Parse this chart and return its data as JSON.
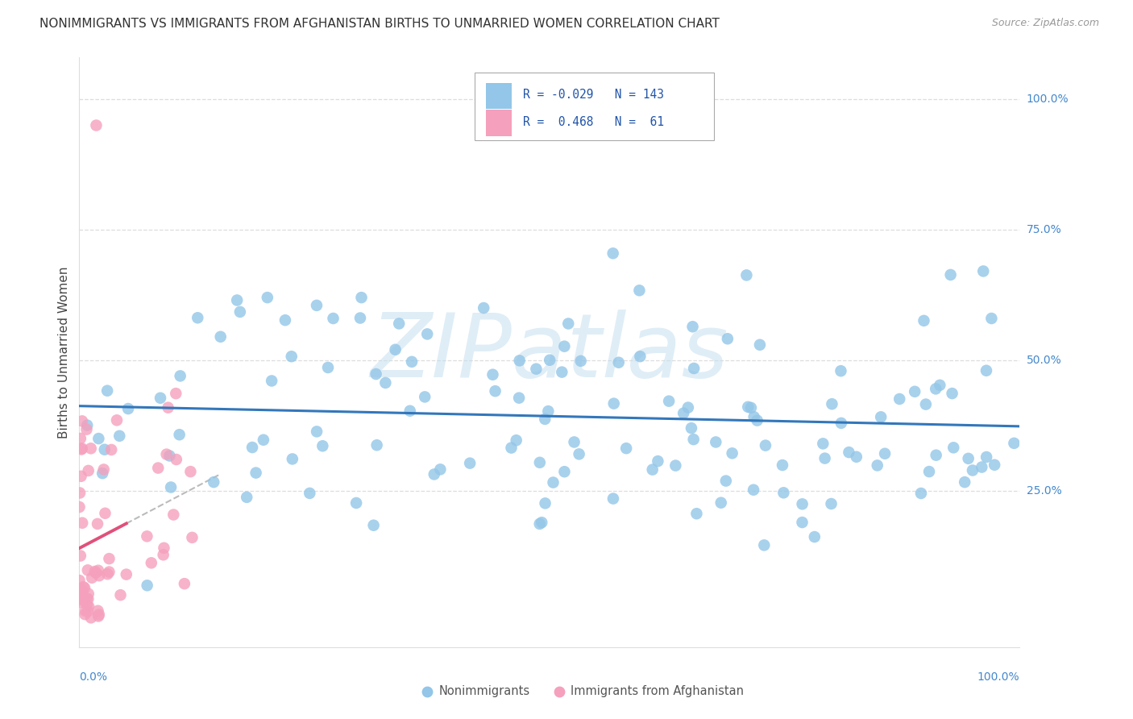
{
  "title": "NONIMMIGRANTS VS IMMIGRANTS FROM AFGHANISTAN BIRTHS TO UNMARRIED WOMEN CORRELATION CHART",
  "source": "Source: ZipAtlas.com",
  "ylabel": "Births to Unmarried Women",
  "legend_label1": "Nonimmigrants",
  "legend_label2": "Immigrants from Afghanistan",
  "R1": -0.029,
  "N1": 143,
  "R2": 0.468,
  "N2": 61,
  "blue_color": "#93c6e8",
  "pink_color": "#f5a0bc",
  "blue_line_color": "#3377bb",
  "pink_line_color": "#e0507a",
  "gray_dash_color": "#cccccc",
  "watermark": "ZIPatlas",
  "watermark_color": "#c5dff0",
  "background_color": "#ffffff",
  "title_fontsize": 11,
  "xlim": [
    0.0,
    1.0
  ],
  "ylim": [
    -0.05,
    1.08
  ]
}
